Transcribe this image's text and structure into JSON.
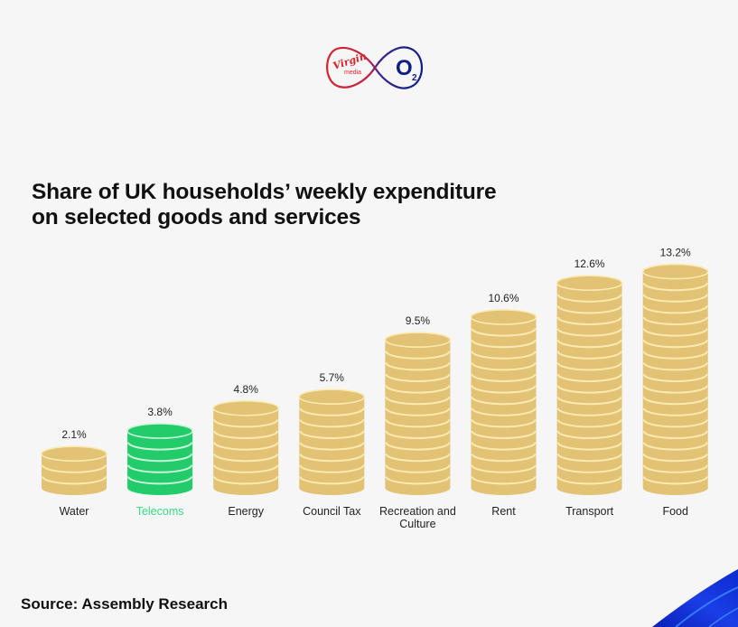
{
  "branding": {
    "brand_left": "Virgin",
    "brand_left_sub": "media",
    "brand_right": "O",
    "brand_right_sub": "2",
    "colors": {
      "virgin_red": "#d8232a",
      "o2_blue": "#0c1f87"
    }
  },
  "title_lines": [
    "Share of UK households’ weekly expenditure",
    "on selected goods and services"
  ],
  "source": "Source: Assembly Research",
  "colors": {
    "coin_gold": "#e2c274",
    "coin_line": "#fbeab0",
    "highlight_green": "#22cc6a",
    "highlight_line": "#c9f5d9",
    "highlight_label": "#3ad98a",
    "text": "#222222",
    "background": "#f6f6f6",
    "swoosh_blue": "#1230d6"
  },
  "chart_data": {
    "type": "bar",
    "style": "coin-stacks",
    "title": "Share of UK households’ weekly expenditure on selected goods and services",
    "xlabel": "",
    "ylabel": "",
    "unit": "%",
    "grid": false,
    "legend": "none",
    "highlight": "Telecoms",
    "categories": [
      "Water",
      "Telecoms",
      "Energy",
      "Council Tax",
      "Recreation and Culture",
      "Rent",
      "Transport",
      "Food"
    ],
    "category_lines": [
      [
        "Water"
      ],
      [
        "Telecoms"
      ],
      [
        "Energy"
      ],
      [
        "Council Tax"
      ],
      [
        "Recreation and",
        "Culture"
      ],
      [
        "Rent"
      ],
      [
        "Transport"
      ],
      [
        "Food"
      ]
    ],
    "values": [
      2.1,
      3.8,
      4.8,
      5.7,
      9.5,
      10.6,
      12.6,
      13.2
    ],
    "value_labels": [
      "2.1%",
      "3.8%",
      "4.8%",
      "5.7%",
      "9.5%",
      "10.6%",
      "12.6%",
      "13.2%"
    ],
    "ylim": [
      0,
      13.2
    ]
  }
}
